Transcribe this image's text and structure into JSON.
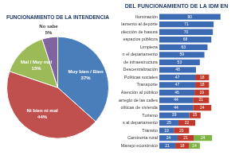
{
  "chart_data": [
    {
      "type": "pie",
      "title": "FUNCIONAMIENTO DE LA INTENDENCIA",
      "categories": [
        "Muy bien / Bien",
        "Ni bien ni mal",
        "Mal / Muy mal",
        "No sabe"
      ],
      "values": [
        37,
        44,
        15,
        5
      ],
      "value_labels": [
        "37%",
        "44%",
        "15%",
        "5%"
      ],
      "colors": [
        "#4a7ebb",
        "#c0504d",
        "#9bbb59",
        "#8064a2"
      ],
      "data_labels": true
    },
    {
      "type": "bar",
      "title": "DEL FUNCIONAMIENTO DE LA IDM EN",
      "orientation": "horizontal",
      "stacked": true,
      "grid": false,
      "tick_labels": "y",
      "data_labels": true,
      "xlim": [
        0,
        100
      ],
      "categories": [
        "Iluminación",
        "lamento al deporte",
        "olección de basura",
        "espacios públicos",
        "Limpieza",
        "n el departamento",
        "de infraestructura",
        "Descentralización",
        "Políticas sociales",
        "Transporte",
        "Atención al público",
        "arreglo de las calles",
        "olíticas de vivienda",
        "Turismo",
        "s al departamento",
        "Tránsito",
        "Caminería rural",
        "Manejo económico"
      ],
      "series": [
        {
          "color": "#3d6bb3",
          "values": [
            80,
            71,
            70,
            68,
            63,
            59,
            53,
            48,
            47,
            47,
            46,
            44,
            44,
            39,
            25,
            19,
            24,
            21
          ]
        },
        {
          "color": "#c0392b",
          "values": [
            null,
            null,
            null,
            null,
            null,
            null,
            null,
            null,
            18,
            18,
            19,
            21,
            24,
            15,
            22,
            20,
            21,
            18
          ]
        },
        {
          "color": "#7cb342",
          "values": [
            null,
            null,
            null,
            null,
            null,
            null,
            null,
            null,
            null,
            null,
            null,
            null,
            null,
            null,
            null,
            null,
            24,
            14
          ]
        }
      ]
    }
  ]
}
